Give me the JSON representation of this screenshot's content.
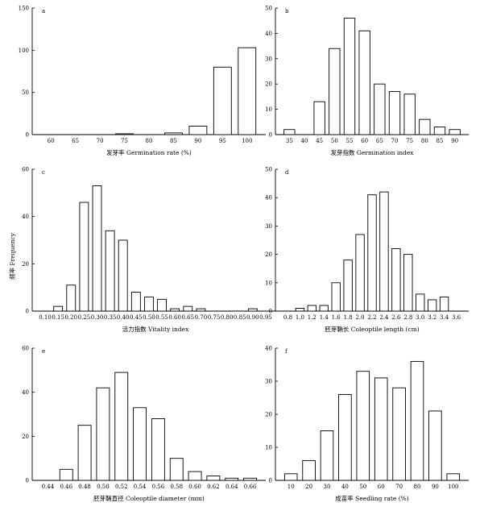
{
  "figure": {
    "shared_ylabel": "频率 Frequency"
  },
  "chart_data": [
    {
      "type": "bar",
      "panel": "a",
      "xlabel": "发芽率 Germination rate (%)",
      "ylabel": "",
      "categories": [
        "60",
        "65",
        "70",
        "75",
        "80",
        "85",
        "90",
        "95",
        "100"
      ],
      "values": [
        0,
        0,
        0,
        1,
        0,
        2,
        10,
        80,
        103
      ],
      "ylim": [
        0,
        150
      ],
      "yticks": [
        0,
        50,
        100,
        150
      ],
      "grid": false
    },
    {
      "type": "bar",
      "panel": "b",
      "xlabel": "发芽指数 Germination index",
      "ylabel": "",
      "categories": [
        "35",
        "40",
        "45",
        "50",
        "55",
        "60",
        "65",
        "70",
        "75",
        "80",
        "85",
        "90"
      ],
      "values": [
        2,
        0,
        13,
        34,
        46,
        41,
        20,
        17,
        16,
        6,
        3,
        2
      ],
      "ylim": [
        0,
        50
      ],
      "yticks": [
        0,
        10,
        20,
        30,
        40,
        50
      ],
      "grid": false
    },
    {
      "type": "bar",
      "panel": "c",
      "xlabel": "活力指数 Vitality index",
      "ylabel": "",
      "categories": [
        "0.10",
        "0.15",
        "0.20",
        "0.25",
        "0.30",
        "0.35",
        "0.40",
        "0.45",
        "0.50",
        "0.55",
        "0.60",
        "0.65",
        "0.70",
        "0.75",
        "0.80",
        "0.85",
        "0.90",
        "0.95"
      ],
      "values": [
        0,
        2,
        11,
        46,
        53,
        34,
        30,
        8,
        6,
        5,
        1,
        2,
        1,
        0,
        0,
        0,
        1,
        0
      ],
      "ylim": [
        0,
        60
      ],
      "yticks": [
        0,
        20,
        40,
        60
      ],
      "grid": false
    },
    {
      "type": "bar",
      "panel": "d",
      "xlabel": "胚芽鞘长 Coleoptile length (cm)",
      "ylabel": "",
      "categories": [
        "0.8",
        "1.0",
        "1.2",
        "1.4",
        "1.6",
        "1.8",
        "2.0",
        "2.2",
        "2.4",
        "2.6",
        "2.8",
        "3.0",
        "3.2",
        "3.4",
        "3.6"
      ],
      "values": [
        0,
        1,
        2,
        2,
        10,
        18,
        27,
        41,
        42,
        22,
        20,
        6,
        4,
        5,
        0
      ],
      "ylim": [
        0,
        50
      ],
      "yticks": [
        0,
        10,
        20,
        30,
        40,
        50
      ],
      "grid": false
    },
    {
      "type": "bar",
      "panel": "e",
      "xlabel": "胚芽鞘直径 Coleoptile diameter (mm)",
      "ylabel": "",
      "categories": [
        "0.44",
        "0.46",
        "0.48",
        "0.50",
        "0.52",
        "0.54",
        "0.56",
        "0.58",
        "0.60",
        "0.62",
        "0.64",
        "0.66"
      ],
      "values": [
        0,
        5,
        25,
        42,
        49,
        33,
        28,
        10,
        4,
        2,
        1,
        1
      ],
      "ylim": [
        0,
        60
      ],
      "yticks": [
        0,
        20,
        40,
        60
      ],
      "grid": false
    },
    {
      "type": "bar",
      "panel": "f",
      "xlabel": "成苗率 Seedling rate (%)",
      "ylabel": "",
      "categories": [
        "10",
        "20",
        "30",
        "40",
        "50",
        "60",
        "70",
        "80",
        "90",
        "100"
      ],
      "values": [
        2,
        6,
        15,
        26,
        33,
        31,
        28,
        36,
        21,
        2
      ],
      "ylim": [
        0,
        40
      ],
      "yticks": [
        0,
        10,
        20,
        30,
        40
      ],
      "grid": false
    }
  ]
}
